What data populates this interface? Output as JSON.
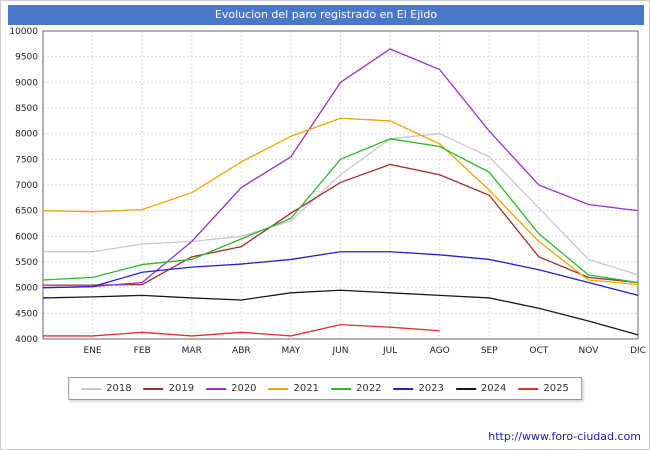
{
  "title": "Evolucion del paro registrado en El Ejido",
  "footer": {
    "url": "http://www.foro-ciudad.com"
  },
  "colors": {
    "titlebar_bg": "#4a77c9",
    "titlebar_text": "#ffffff",
    "footer_text": "#2020b0",
    "grid": "#dcdcdc",
    "plot_border": "#666666",
    "tick_text": "#222222"
  },
  "chart_data": {
    "type": "line",
    "title": "Evolucion del paro registrado en El Ejido",
    "x_labels": [
      "ENE",
      "FEB",
      "MAR",
      "ABR",
      "MAY",
      "JUN",
      "JUL",
      "AGO",
      "SEP",
      "OCT",
      "NOV",
      "DIC"
    ],
    "ylim": [
      4000,
      10000
    ],
    "ytick_step": 500,
    "grid": true,
    "legend_position": "bottom",
    "note": "start = value at left plot edge (previous December), before ENE; 2025 ends in AGO",
    "series": [
      {
        "name": "2018",
        "color": "#c8c8c8",
        "start": 5700,
        "values": [
          5700,
          5850,
          5900,
          6000,
          6300,
          7200,
          7900,
          8000,
          7550,
          6550,
          5550,
          5250
        ]
      },
      {
        "name": "2019",
        "color": "#a03030",
        "start": 5050,
        "values": [
          5050,
          5060,
          5600,
          5800,
          6450,
          7050,
          7400,
          7200,
          6800,
          5600,
          5200,
          5100
        ]
      },
      {
        "name": "2020",
        "color": "#9933cc",
        "start": 5000,
        "values": [
          5020,
          5100,
          5900,
          6950,
          7550,
          9000,
          9650,
          9250,
          8050,
          7000,
          6620,
          6500
        ]
      },
      {
        "name": "2021",
        "color": "#f0a500",
        "start": 6500,
        "values": [
          6480,
          6520,
          6850,
          7450,
          7950,
          8300,
          8250,
          7800,
          6900,
          5900,
          5150,
          5060
        ]
      },
      {
        "name": "2022",
        "color": "#2db82d",
        "start": 5150,
        "values": [
          5200,
          5450,
          5550,
          5950,
          6350,
          7500,
          7900,
          7750,
          7250,
          6050,
          5250,
          5100
        ]
      },
      {
        "name": "2023",
        "color": "#2222cc",
        "start": 5000,
        "values": [
          5020,
          5300,
          5400,
          5460,
          5550,
          5700,
          5700,
          5640,
          5550,
          5350,
          5100,
          4850
        ]
      },
      {
        "name": "2024",
        "color": "#1a1a1a",
        "start": 4800,
        "values": [
          4820,
          4850,
          4800,
          4760,
          4900,
          4950,
          4900,
          4850,
          4800,
          4600,
          4350,
          4080
        ]
      },
      {
        "name": "2025",
        "color": "#e03131",
        "start": 4060,
        "values": [
          4060,
          4130,
          4060,
          4130,
          4060,
          4280,
          4230,
          4160,
          null,
          null,
          null,
          null
        ]
      }
    ]
  }
}
